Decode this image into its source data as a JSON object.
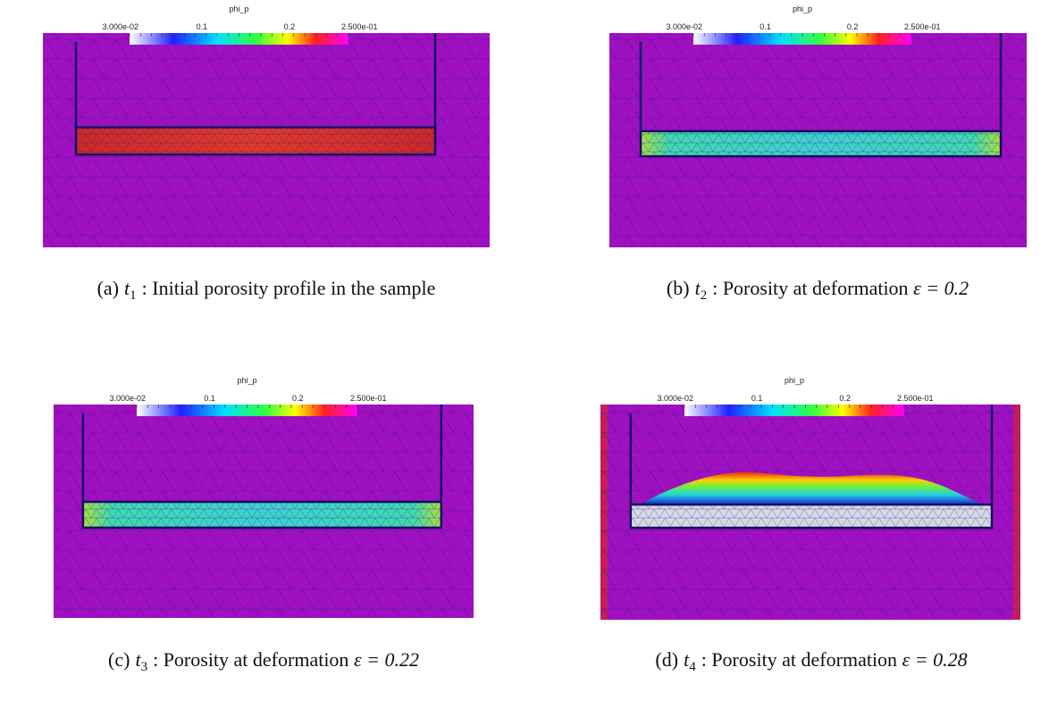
{
  "colorbar": {
    "title": "phi_p",
    "labels": [
      "3.000e-02",
      "0.1",
      "0.2",
      "2.500e-01"
    ]
  },
  "panels": [
    {
      "label": "(a)",
      "var": "t",
      "sub": "1",
      "text": ": Initial porosity profile in the sample"
    },
    {
      "label": "(b)",
      "var": "t",
      "sub": "2",
      "text": ": Porosity at deformation ",
      "eq": "ε = 0.2"
    },
    {
      "label": "(c)",
      "var": "t",
      "sub": "3",
      "text": ": Porosity at deformation ",
      "eq": "ε = 0.22"
    },
    {
      "label": "(d)",
      "var": "t",
      "sub": "4",
      "text": ": Porosity at deformation ",
      "eq": "ε = 0.28"
    }
  ]
}
